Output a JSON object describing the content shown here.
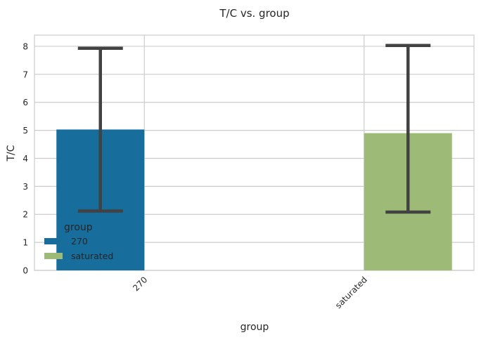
{
  "chart_data": {
    "type": "bar",
    "title": "T/C vs. group",
    "xlabel": "group",
    "ylabel": "T/C",
    "categories": [
      "270",
      "saturated"
    ],
    "series": [
      {
        "name": "270",
        "color": "#176d9c",
        "values": [
          5.03,
          null
        ],
        "error_low": [
          2.12,
          null
        ],
        "error_high": [
          7.93,
          null
        ]
      },
      {
        "name": "saturated",
        "color": "#9dbb77",
        "values": [
          null,
          4.9
        ],
        "error_low": [
          null,
          2.08
        ],
        "error_high": [
          null,
          8.03
        ]
      }
    ],
    "ylim": [
      0,
      8.4
    ],
    "yticks": [
      "0",
      "1",
      "2",
      "3",
      "4",
      "5",
      "6",
      "7",
      "8"
    ],
    "grid": true,
    "legend": {
      "title": "group",
      "position": "lower-left"
    },
    "error_bar_color": "#424242"
  }
}
